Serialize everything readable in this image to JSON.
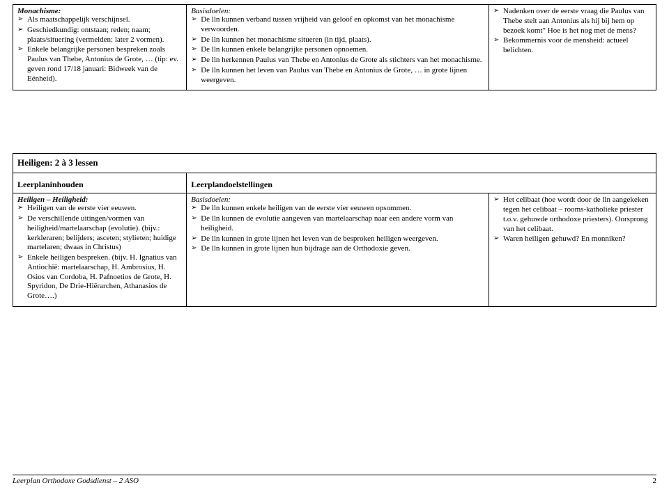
{
  "table1": {
    "col1": {
      "heading": "Monachisme:",
      "items": [
        "Als maatschappelijk verschijnsel.",
        "Geschiedkundig: ontstaan; reden; naam; plaats/situering (vermelden: later 2 vormen).",
        "Enkele belangrijke personen bespreken zoals Paulus van Thebe, Antonius de Grote, … (tip: ev. geven rond 17/18 januari: Bidweek van de Eénheid)."
      ]
    },
    "col2": {
      "heading": "Basisdoelen:",
      "items": [
        "De lln kunnen verband tussen vrijheid van geloof en opkomst van het monachisme verwoorden.",
        "De lln kunnen het monachisme situeren (in tijd, plaats).",
        "De lln kunnen enkele belangrijke personen opnoemen.",
        "De lln herkennen Paulus van Thebe en Antonius de Grote als stichters van het monachisme.",
        "De lln kunnen het leven van Paulus van Thebe en Antonius de Grote, … in grote lijnen weergeven."
      ]
    },
    "col3": {
      "items": [
        "Nadenken over de eerste vraag die Paulus van Thebe stelt aan Antonius als hij bij hem op bezoek komt\" Hoe is het nog met de mens?",
        "Bekommernis voor de mensheid: actueel belichten."
      ]
    }
  },
  "table2": {
    "title": "Heiligen: 2 à 3 lessen",
    "leftHead": "Leerplaninhouden",
    "rightHead": "Leerplandoelstellingen",
    "col1": {
      "heading": "Heiligen – Heiligheid:",
      "items": [
        "Heiligen van de eerste vier eeuwen.",
        "De verschillende uitingen/vormen van heiligheid/martelaarschap (evolutie). (bijv.: kerkleraren; belijders; asceten; stylieten; huidige martelaren; dwaas in Christus)",
        "Enkele heiligen bespreken. (bijv. H. Ignatius van Antiochië: martelaarschap, H. Ambrosius, H. Osios van Cordoba, H. Pafnoetios de Grote, H. Spyridon, De Drie-Hiërarchen, Athanasios de Grote….)"
      ]
    },
    "col2": {
      "heading": "Basisdoelen:",
      "items": [
        "De lln kunnen enkele heiligen van de eerste vier eeuwen opsommen.",
        "De lln kunnen de evolutie aangeven van martelaarschap naar een andere vorm van heiligheid.",
        "De lln kunnen in grote lijnen het leven van de besproken heiligen weergeven.",
        "De lln kunnen in grote lijnen hun bijdrage aan de Orthodoxie geven."
      ]
    },
    "col3": {
      "items": [
        "Het celibaat (hoe wordt door de lln aangekeken tegen het celibaat – rooms-katholieke priester t.o.v. gehuwde orthodoxe priesters). Oorsprong van het celibaat.",
        "Waren heiligen gehuwd? En monniken?"
      ]
    }
  },
  "footer": {
    "left": "Leerplan Orthodoxe Godsdienst – 2 ASO",
    "page": "2"
  }
}
